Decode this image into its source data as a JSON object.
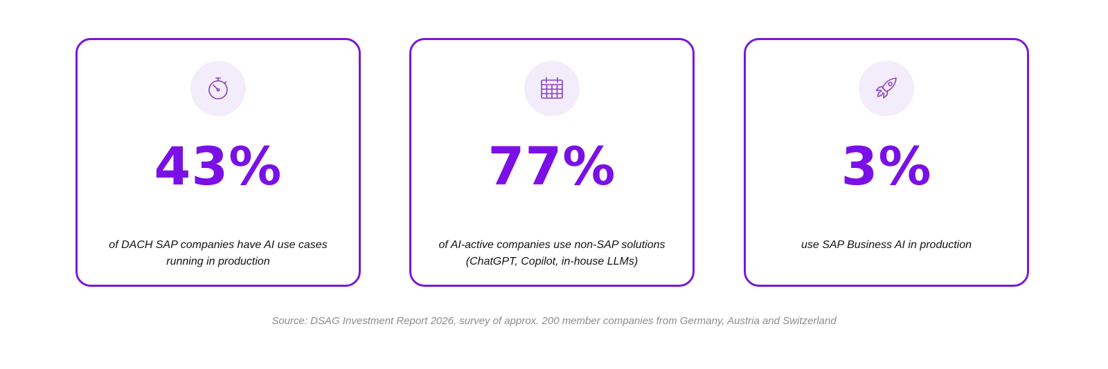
{
  "cards": [
    {
      "icon": "stopwatch-icon",
      "value": "43%",
      "description": "of DACH SAP companies have AI use cases running in production"
    },
    {
      "icon": "calendar-icon",
      "value": "77%",
      "description": "of AI-active companies use non-SAP solutions (ChatGPT, Copilot, in-house LLMs)"
    },
    {
      "icon": "rocket-icon",
      "value": "3%",
      "description": "use SAP Business AI in production"
    }
  ],
  "source": "Source: DSAG Investment Report 2026, survey of approx. 200 member companies from Germany, Austria and Switzerland",
  "colors": {
    "accent": "#7a10e6",
    "border": "#7a16d9",
    "icon_bg": "#f3ecfb",
    "icon_stroke": "#8a3fbf",
    "source_text": "#8c8c8c"
  }
}
